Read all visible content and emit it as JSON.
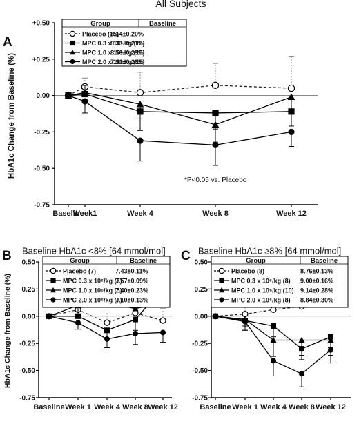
{
  "figure_title": "All Subjects",
  "chart_data": [
    {
      "panel_letter": "A",
      "type": "line",
      "title": "",
      "xlabel": "",
      "ylabel": "HbA1c  Change from Baseline (%)",
      "categories": [
        "Baseline",
        "Week1",
        "Week 4",
        "Week 8",
        "Week 12"
      ],
      "x": [
        0,
        1,
        4,
        8,
        12
      ],
      "ylim": [
        -0.75,
        0.5
      ],
      "yticks": [
        0.5,
        0.25,
        0.0,
        -0.25,
        -0.5,
        -0.75
      ],
      "ytick_labels": [
        "+0.50",
        "+0.25",
        "0.00",
        "-0.25",
        "-0.50",
        "-0.75"
      ],
      "annotation": "*P<0.05 vs. Placebo",
      "legend_header": {
        "group": "Group",
        "baseline": "Baseline"
      },
      "legend_position": "top-left",
      "series": [
        {
          "name": "Placebo (15)",
          "baseline_label": "8.14±0.20%",
          "marker": "open-circle",
          "dashed": true,
          "values": [
            0.0,
            0.06,
            0.02,
            0.07,
            0.05
          ],
          "err": [
            0.0,
            0.06,
            0.14,
            0.15,
            0.22
          ]
        },
        {
          "name": "MPC 0.3 x 10⁶/kg (15)",
          "baseline_label": "8.33±0.21%",
          "marker": "square",
          "dashed": false,
          "values": [
            0.0,
            0.01,
            -0.11,
            -0.12,
            -0.11
          ],
          "err": [
            0.0,
            0.06,
            0.13,
            0.11,
            0.1
          ]
        },
        {
          "name": "MPC 1.0 x 10⁶/kg (15)",
          "baseline_label": "8.56±0.29%",
          "marker": "triangle",
          "dashed": false,
          "values": [
            0.0,
            0.02,
            -0.06,
            -0.2,
            -0.01
          ],
          "err": [
            0.0,
            0.05,
            0.1,
            0.12,
            0.1
          ]
        },
        {
          "name": "MPC 2.0 x 10⁶/kg (15)",
          "baseline_label": "7.91±0.28%",
          "marker": "circle",
          "dashed": false,
          "values": [
            0.0,
            -0.04,
            -0.31,
            -0.34,
            -0.25
          ],
          "err": [
            0.0,
            0.08,
            0.14,
            0.14,
            0.1
          ]
        }
      ]
    },
    {
      "panel_letter": "B",
      "type": "line",
      "title": "Baseline HbA1c <8% [64 mmol/mol]",
      "xlabel": "",
      "ylabel": "HbA1c Change from Baseline (%)",
      "categories": [
        "Baseline",
        "Week 1",
        "Week 4",
        "Week 8",
        "Week 12"
      ],
      "x": [
        0,
        1,
        2,
        3,
        4
      ],
      "ylim": [
        -0.75,
        0.5
      ],
      "yticks": [
        0.5,
        0.25,
        0.0,
        -0.25,
        -0.5,
        -0.75
      ],
      "ytick_labels": [
        "0.50",
        "0.25",
        "0.00",
        "-0.25",
        "-0.50",
        "-0.75"
      ],
      "legend_header": {
        "group": "Group",
        "baseline": "Baseline"
      },
      "legend_position": "top",
      "series": [
        {
          "name": "Placebo (7)",
          "baseline_label": "7.43±0.11%",
          "marker": "open-circle",
          "dashed": true,
          "values": [
            0.0,
            0.06,
            -0.06,
            0.03,
            -0.04
          ],
          "err": [
            0.0,
            0.07,
            0.1,
            0.1,
            0.11
          ]
        },
        {
          "name": "MPC 0.3 x 10⁶/kg (7)",
          "baseline_label": "7.57±0.09%",
          "marker": "square",
          "dashed": false,
          "values": [
            0.0,
            0.0,
            -0.13,
            -0.03,
            0.26
          ],
          "err": [
            0.0,
            0.08,
            0.08,
            0.1,
            0.12
          ]
        },
        {
          "name": "MPC 1.0 x 10⁶/kg (5)",
          "baseline_label": "7.40±0.23%",
          "marker": "triangle",
          "dashed": false,
          "values": [
            0.0,
            0.1,
            0.12,
            0.07,
            0.12
          ],
          "err": [
            0.0,
            0.1,
            0.12,
            0.1,
            0.1
          ]
        },
        {
          "name": "MPC 2.0 x 10⁶/kg (7)",
          "baseline_label": "7.10±0.13%",
          "marker": "circle",
          "dashed": false,
          "values": [
            0.0,
            -0.06,
            -0.21,
            -0.16,
            -0.15
          ],
          "err": [
            0.0,
            0.06,
            0.08,
            0.1,
            0.09
          ]
        }
      ]
    },
    {
      "panel_letter": "C",
      "type": "line",
      "title": "Baseline HbA1c ≥8% [64 mmol/mol]",
      "xlabel": "",
      "ylabel": "",
      "categories": [
        "Baseline",
        "Week 1",
        "Week 4",
        "Week 8",
        "Week 12"
      ],
      "x": [
        0,
        1,
        2,
        3,
        4
      ],
      "ylim": [
        -0.75,
        0.5
      ],
      "yticks": [
        0.5,
        0.25,
        0.0,
        -0.25,
        -0.5,
        -0.75
      ],
      "ytick_labels": [
        "0.50",
        "0.25",
        "0.00",
        "-0.25",
        "-0.50",
        "-0.75"
      ],
      "legend_header": {
        "group": "Group",
        "baseline": "Baseline"
      },
      "legend_position": "top",
      "series": [
        {
          "name": "Placebo (8)",
          "baseline_label": "8.76±0.13%",
          "marker": "open-circle",
          "dashed": true,
          "values": [
            0.0,
            0.02,
            0.06,
            0.09,
            0.11
          ],
          "err": [
            0.0,
            0.12,
            0.15,
            0.17,
            0.2
          ]
        },
        {
          "name": "MPC 0.3 x 10⁶/kg (8)",
          "baseline_label": "9.00±0.16%",
          "marker": "square",
          "dashed": false,
          "values": [
            0.0,
            -0.04,
            -0.09,
            -0.3,
            -0.19
          ],
          "err": [
            0.0,
            0.08,
            0.1,
            0.1,
            0.1
          ]
        },
        {
          "name": "MPC 1.0 x 10⁶/kg (10)",
          "baseline_label": "9.14±0.28%",
          "marker": "triangle",
          "dashed": false,
          "values": [
            0.0,
            -0.03,
            -0.22,
            -0.22,
            -0.22
          ],
          "err": [
            0.0,
            0.06,
            0.15,
            0.14,
            0.14
          ]
        },
        {
          "name": "MPC 2.0 x 10⁶/kg (8)",
          "baseline_label": "8.84±0.30%",
          "marker": "circle",
          "dashed": false,
          "values": [
            0.0,
            -0.05,
            -0.41,
            -0.53,
            -0.31
          ],
          "err": [
            0.0,
            0.08,
            0.14,
            0.12,
            0.12
          ]
        }
      ]
    }
  ]
}
